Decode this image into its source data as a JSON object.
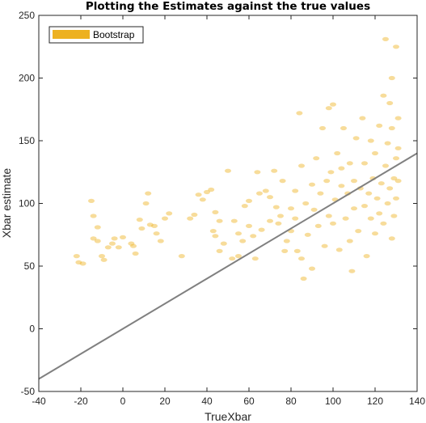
{
  "chart_data": {
    "type": "scatter",
    "title": "Plotting the Estimates against the true values",
    "xlabel": "TrueXbar",
    "ylabel": "Xbar estimate",
    "xlim": [
      -40,
      140
    ],
    "ylim": [
      -50,
      250
    ],
    "xticks": [
      "-40",
      "-20",
      "0",
      "20",
      "40",
      "60",
      "80",
      "100",
      "120",
      "140"
    ],
    "yticks": [
      "-50",
      "0",
      "50",
      "100",
      "150",
      "200",
      "250"
    ],
    "grid": false,
    "legend_position": "top-left",
    "colors": {
      "points": "#EDB120",
      "line": "#808080",
      "axes": "#262626"
    },
    "series": [
      {
        "name": "Bootstrap",
        "kind": "points",
        "points": [
          [
            -21,
            53
          ],
          [
            -19,
            52
          ],
          [
            -22,
            58
          ],
          [
            -15,
            102
          ],
          [
            -14,
            90
          ],
          [
            -12,
            81
          ],
          [
            -14,
            72
          ],
          [
            -12,
            70
          ],
          [
            -10,
            58
          ],
          [
            -9,
            55
          ],
          [
            -7,
            65
          ],
          [
            -5,
            68
          ],
          [
            -4,
            72
          ],
          [
            -2,
            65
          ],
          [
            0,
            73
          ],
          [
            4,
            68
          ],
          [
            5,
            66
          ],
          [
            6,
            60
          ],
          [
            8,
            87
          ],
          [
            9,
            80
          ],
          [
            11,
            100
          ],
          [
            12,
            108
          ],
          [
            13,
            83
          ],
          [
            15,
            82
          ],
          [
            16,
            76
          ],
          [
            18,
            70
          ],
          [
            20,
            88
          ],
          [
            22,
            92
          ],
          [
            28,
            58
          ],
          [
            32,
            88
          ],
          [
            34,
            91
          ],
          [
            36,
            107
          ],
          [
            38,
            103
          ],
          [
            40,
            109
          ],
          [
            42,
            111
          ],
          [
            44,
            93
          ],
          [
            46,
            86
          ],
          [
            43,
            78
          ],
          [
            44,
            74
          ],
          [
            46,
            62
          ],
          [
            48,
            68
          ],
          [
            50,
            126
          ],
          [
            53,
            86
          ],
          [
            55,
            76
          ],
          [
            55,
            58
          ],
          [
            52,
            56
          ],
          [
            57,
            70
          ],
          [
            58,
            98
          ],
          [
            60,
            102
          ],
          [
            60,
            82
          ],
          [
            62,
            74
          ],
          [
            64,
            125
          ],
          [
            65,
            108
          ],
          [
            63,
            56
          ],
          [
            66,
            79
          ],
          [
            68,
            110
          ],
          [
            70,
            105
          ],
          [
            70,
            86
          ],
          [
            72,
            126
          ],
          [
            73,
            97
          ],
          [
            74,
            84
          ],
          [
            76,
            118
          ],
          [
            75,
            90
          ],
          [
            78,
            70
          ],
          [
            77,
            62
          ],
          [
            80,
            96
          ],
          [
            80,
            78
          ],
          [
            82,
            110
          ],
          [
            82,
            88
          ],
          [
            83,
            62
          ],
          [
            84,
            172
          ],
          [
            85,
            130
          ],
          [
            85,
            56
          ],
          [
            86,
            40
          ],
          [
            87,
            100
          ],
          [
            88,
            75
          ],
          [
            90,
            115
          ],
          [
            90,
            48
          ],
          [
            91,
            95
          ],
          [
            92,
            136
          ],
          [
            93,
            82
          ],
          [
            94,
            108
          ],
          [
            95,
            160
          ],
          [
            96,
            66
          ],
          [
            97,
            118
          ],
          [
            98,
            90
          ],
          [
            98,
            176
          ],
          [
            99,
            125
          ],
          [
            100,
            179
          ],
          [
            100,
            84
          ],
          [
            101,
            103
          ],
          [
            102,
            140
          ],
          [
            103,
            63
          ],
          [
            104,
            114
          ],
          [
            104,
            128
          ],
          [
            105,
            160
          ],
          [
            106,
            88
          ],
          [
            107,
            108
          ],
          [
            108,
            70
          ],
          [
            108,
            132
          ],
          [
            109,
            46
          ],
          [
            110,
            118
          ],
          [
            110,
            96
          ],
          [
            111,
            152
          ],
          [
            112,
            78
          ],
          [
            113,
            112
          ],
          [
            114,
            168
          ],
          [
            115,
            98
          ],
          [
            115,
            132
          ],
          [
            116,
            58
          ],
          [
            117,
            108
          ],
          [
            118,
            88
          ],
          [
            118,
            150
          ],
          [
            119,
            120
          ],
          [
            120,
            140
          ],
          [
            120,
            76
          ],
          [
            121,
            104
          ],
          [
            122,
            162
          ],
          [
            122,
            92
          ],
          [
            123,
            116
          ],
          [
            124,
            186
          ],
          [
            124,
            84
          ],
          [
            125,
            130
          ],
          [
            125,
            231
          ],
          [
            126,
            100
          ],
          [
            126,
            148
          ],
          [
            127,
            112
          ],
          [
            127,
            180
          ],
          [
            128,
            200
          ],
          [
            128,
            72
          ],
          [
            128,
            160
          ],
          [
            129,
            120
          ],
          [
            129,
            90
          ],
          [
            130,
            225
          ],
          [
            130,
            136
          ],
          [
            130,
            104
          ],
          [
            131,
            144
          ],
          [
            131,
            118
          ],
          [
            131,
            168
          ]
        ]
      },
      {
        "name": "",
        "kind": "line",
        "points": [
          [
            -40,
            -40
          ],
          [
            140,
            140
          ]
        ]
      }
    ]
  }
}
